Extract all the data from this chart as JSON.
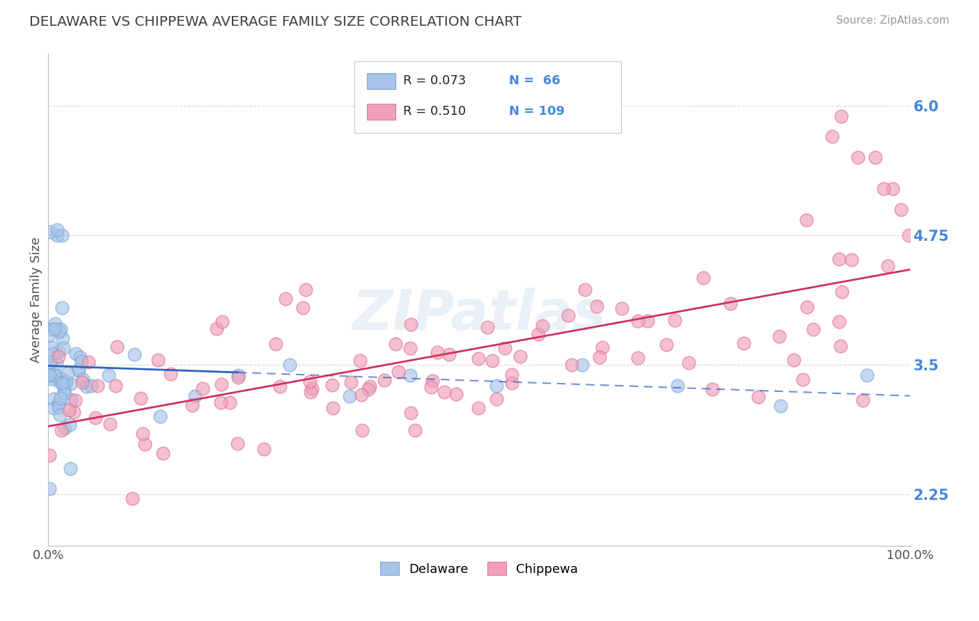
{
  "title": "DELAWARE VS CHIPPEWA AVERAGE FAMILY SIZE CORRELATION CHART",
  "source_text": "Source: ZipAtlas.com",
  "ylabel": "Average Family Size",
  "legend_labels": [
    "Delaware",
    "Chippewa"
  ],
  "legend_r": [
    0.073,
    0.51
  ],
  "legend_n": [
    66,
    109
  ],
  "delaware_color": "#a8c4e8",
  "chippewa_color": "#f0a0b8",
  "delaware_edge_color": "#7aa8d8",
  "chippewa_edge_color": "#e07898",
  "delaware_line_color": "#3060c0",
  "chippewa_line_color": "#d03060",
  "title_color": "#404040",
  "source_color": "#999999",
  "label_color": "#4488dd",
  "grid_color": "#cccccc",
  "watermark_color": "#c8d8f0",
  "ytick_values": [
    2.25,
    3.5,
    4.75,
    6.0
  ],
  "ylim": [
    1.75,
    6.5
  ],
  "xlim": [
    0.0,
    1.0
  ],
  "seed_del": 7,
  "seed_chip": 15
}
